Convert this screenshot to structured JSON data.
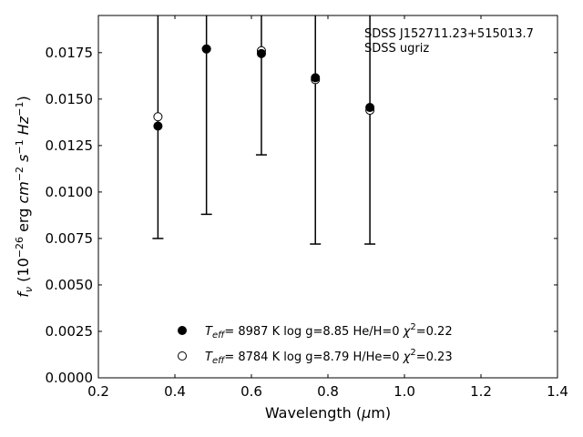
{
  "chart_data": {
    "type": "scatter",
    "title": "",
    "xlabel": "Wavelength (μm)",
    "xlabel_parts": [
      "Wavelength (",
      "μ",
      "m)"
    ],
    "ylabel": "f_ν (10^-26 erg cm^-2 s^-1 Hz^-1)",
    "xlim": [
      0.2,
      1.4
    ],
    "ylim": [
      0.0,
      0.0195
    ],
    "x_ticks": [
      0.2,
      0.4,
      0.6,
      0.8,
      1.0,
      1.2,
      1.4
    ],
    "x_tick_labels": [
      "0.2",
      "0.4",
      "0.6",
      "0.8",
      "1.0",
      "1.2",
      "1.4"
    ],
    "y_ticks": [
      0.0,
      0.0025,
      0.005,
      0.0075,
      0.01,
      0.0125,
      0.015,
      0.0175
    ],
    "y_tick_labels": [
      "0.0000",
      "0.0025",
      "0.0050",
      "0.0075",
      "0.0100",
      "0.0125",
      "0.0150",
      "0.0175"
    ],
    "grid": false,
    "annotation": [
      "SDSS J152711.23+515013.7",
      "SDSS ugriz"
    ],
    "observed": {
      "x": [
        0.3557,
        0.4825,
        0.6261,
        0.7672,
        0.9097
      ],
      "y": [
        0.014,
        0.0176,
        0.0176,
        0.016,
        0.0144
      ],
      "yerr": [
        0.0065,
        0.0088,
        0.0056,
        0.0088,
        0.0072
      ]
    },
    "series": [
      {
        "name": "Teff= 8987 K log g=8.85 He/H=0 χ²=0.22",
        "marker": "filled-circle",
        "x": [
          0.3557,
          0.4825,
          0.6261,
          0.7672,
          0.9097
        ],
        "y": [
          0.01355,
          0.0177,
          0.01745,
          0.01615,
          0.01455
        ]
      },
      {
        "name": "Teff= 8784 K log g=8.79 H/He=0 χ²=0.23",
        "marker": "open-circle",
        "x": [
          0.3557,
          0.4825,
          0.6261,
          0.7672,
          0.9097
        ],
        "y": [
          0.01405,
          0.0177,
          0.0176,
          0.01605,
          0.0144
        ]
      }
    ],
    "legend": {
      "placement": "bottom-center",
      "entries": [
        {
          "teff_value": "8987 K",
          "logg": "log g=8.85",
          "composition": "He/H=0",
          "chi2": "=0.22"
        },
        {
          "teff_value": "8784 K",
          "logg": "log g=8.79",
          "composition": "H/He=0",
          "chi2": "=0.23"
        }
      ]
    }
  }
}
